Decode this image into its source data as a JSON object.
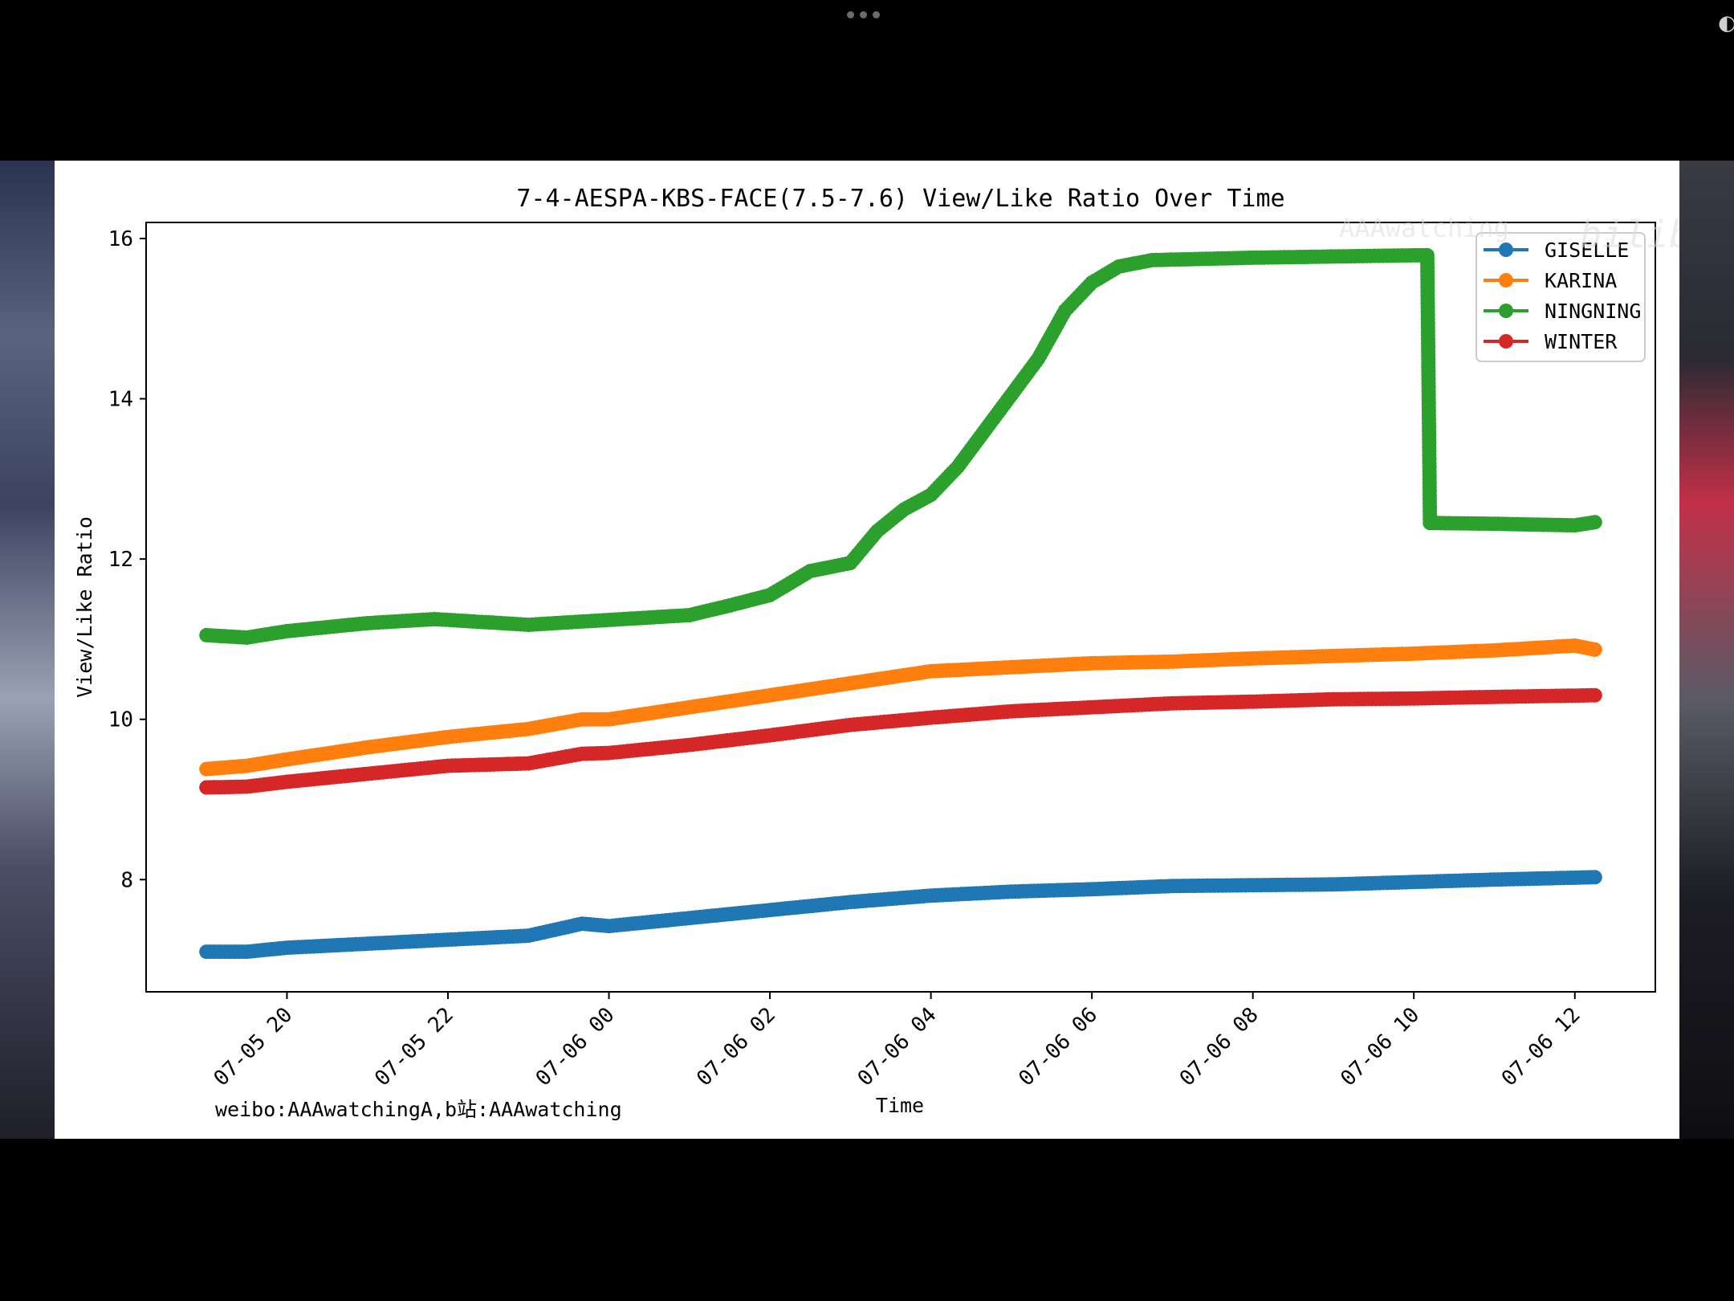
{
  "screen": {
    "menu_icon": "more-dots-icon",
    "watermark_brand": "bilibili",
    "watermark_channel": "AAAwatching"
  },
  "chart_data": {
    "type": "scatter",
    "title": "7-4-AESPA-KBS-FACE(7.5-7.6) View/Like Ratio Over Time",
    "xlabel": "Time",
    "ylabel": "View/Like Ratio",
    "footer_note": "weibo:AAAwatchingA,b站:AAAwatching",
    "x_ticks": [
      "07-05 20",
      "07-05 22",
      "07-06 00",
      "07-06 02",
      "07-06 04",
      "07-06 06",
      "07-06 08",
      "07-06 10",
      "07-06 12"
    ],
    "xlim": [
      "07-05 18:15",
      "07-06 13:00"
    ],
    "ylim": [
      6.6,
      16.2
    ],
    "y_ticks": [
      8,
      10,
      12,
      14,
      16
    ],
    "grid": false,
    "legend_position": "top-right",
    "series": [
      {
        "name": "GISELLE",
        "color": "#1f77b4",
        "points": [
          [
            "07-05 19:00",
            7.1
          ],
          [
            "07-05 19:30",
            7.1
          ],
          [
            "07-05 20:00",
            7.15
          ],
          [
            "07-05 21:00",
            7.2
          ],
          [
            "07-05 22:00",
            7.25
          ],
          [
            "07-05 23:00",
            7.3
          ],
          [
            "07-05 23:40",
            7.45
          ],
          [
            "07-06 00:00",
            7.42
          ],
          [
            "07-06 01:00",
            7.52
          ],
          [
            "07-06 02:00",
            7.62
          ],
          [
            "07-06 03:00",
            7.72
          ],
          [
            "07-06 04:00",
            7.8
          ],
          [
            "07-06 05:00",
            7.85
          ],
          [
            "07-06 06:00",
            7.88
          ],
          [
            "07-06 07:00",
            7.92
          ],
          [
            "07-06 08:00",
            7.93
          ],
          [
            "07-06 09:00",
            7.94
          ],
          [
            "07-06 10:00",
            7.97
          ],
          [
            "07-06 11:00",
            8.0
          ],
          [
            "07-06 12:15",
            8.03
          ]
        ]
      },
      {
        "name": "KARINA",
        "color": "#ff7f0e",
        "points": [
          [
            "07-05 19:00",
            9.38
          ],
          [
            "07-05 19:30",
            9.42
          ],
          [
            "07-05 20:00",
            9.5
          ],
          [
            "07-05 21:00",
            9.65
          ],
          [
            "07-05 22:00",
            9.78
          ],
          [
            "07-05 23:00",
            9.88
          ],
          [
            "07-05 23:40",
            10.0
          ],
          [
            "07-06 00:00",
            10.0
          ],
          [
            "07-06 01:00",
            10.15
          ],
          [
            "07-06 02:00",
            10.3
          ],
          [
            "07-06 03:00",
            10.45
          ],
          [
            "07-06 04:00",
            10.6
          ],
          [
            "07-06 05:00",
            10.65
          ],
          [
            "07-06 06:00",
            10.7
          ],
          [
            "07-06 07:00",
            10.72
          ],
          [
            "07-06 08:00",
            10.76
          ],
          [
            "07-06 09:00",
            10.79
          ],
          [
            "07-06 10:00",
            10.82
          ],
          [
            "07-06 11:00",
            10.86
          ],
          [
            "07-06 12:00",
            10.92
          ],
          [
            "07-06 12:15",
            10.87
          ]
        ]
      },
      {
        "name": "NINGNING",
        "color": "#2ca02c",
        "points": [
          [
            "07-05 19:00",
            11.05
          ],
          [
            "07-05 19:30",
            11.02
          ],
          [
            "07-05 20:00",
            11.1
          ],
          [
            "07-05 21:00",
            11.2
          ],
          [
            "07-05 21:50",
            11.25
          ],
          [
            "07-05 23:00",
            11.18
          ],
          [
            "07-05 23:50",
            11.23
          ],
          [
            "07-06 01:00",
            11.3
          ],
          [
            "07-06 01:30",
            11.42
          ],
          [
            "07-06 02:00",
            11.55
          ],
          [
            "07-06 02:30",
            11.85
          ],
          [
            "07-06 03:00",
            11.95
          ],
          [
            "07-06 03:20",
            12.35
          ],
          [
            "07-06 03:40",
            12.62
          ],
          [
            "07-06 04:00",
            12.8
          ],
          [
            "07-06 04:20",
            13.15
          ],
          [
            "07-06 04:40",
            13.6
          ],
          [
            "07-06 05:00",
            14.05
          ],
          [
            "07-06 05:20",
            14.5
          ],
          [
            "07-06 05:40",
            15.1
          ],
          [
            "07-06 06:00",
            15.45
          ],
          [
            "07-06 06:20",
            15.65
          ],
          [
            "07-06 06:45",
            15.73
          ],
          [
            "07-06 08:00",
            15.76
          ],
          [
            "07-06 10:00",
            15.79
          ],
          [
            "07-06 10:10",
            15.79
          ],
          [
            "07-06 10:12",
            12.45
          ],
          [
            "07-06 11:00",
            12.44
          ],
          [
            "07-06 12:00",
            12.42
          ],
          [
            "07-06 12:15",
            12.46
          ]
        ]
      },
      {
        "name": "WINTER",
        "color": "#d62728",
        "points": [
          [
            "07-05 19:00",
            9.15
          ],
          [
            "07-05 19:30",
            9.16
          ],
          [
            "07-05 20:00",
            9.22
          ],
          [
            "07-05 21:00",
            9.32
          ],
          [
            "07-05 22:00",
            9.42
          ],
          [
            "07-05 23:00",
            9.45
          ],
          [
            "07-05 23:40",
            9.57
          ],
          [
            "07-06 00:00",
            9.58
          ],
          [
            "07-06 01:00",
            9.68
          ],
          [
            "07-06 02:00",
            9.8
          ],
          [
            "07-06 03:00",
            9.93
          ],
          [
            "07-06 04:00",
            10.02
          ],
          [
            "07-06 05:00",
            10.1
          ],
          [
            "07-06 06:00",
            10.15
          ],
          [
            "07-06 07:00",
            10.2
          ],
          [
            "07-06 08:00",
            10.22
          ],
          [
            "07-06 09:00",
            10.25
          ],
          [
            "07-06 10:00",
            10.26
          ],
          [
            "07-06 11:00",
            10.28
          ],
          [
            "07-06 12:15",
            10.3
          ]
        ]
      }
    ]
  }
}
